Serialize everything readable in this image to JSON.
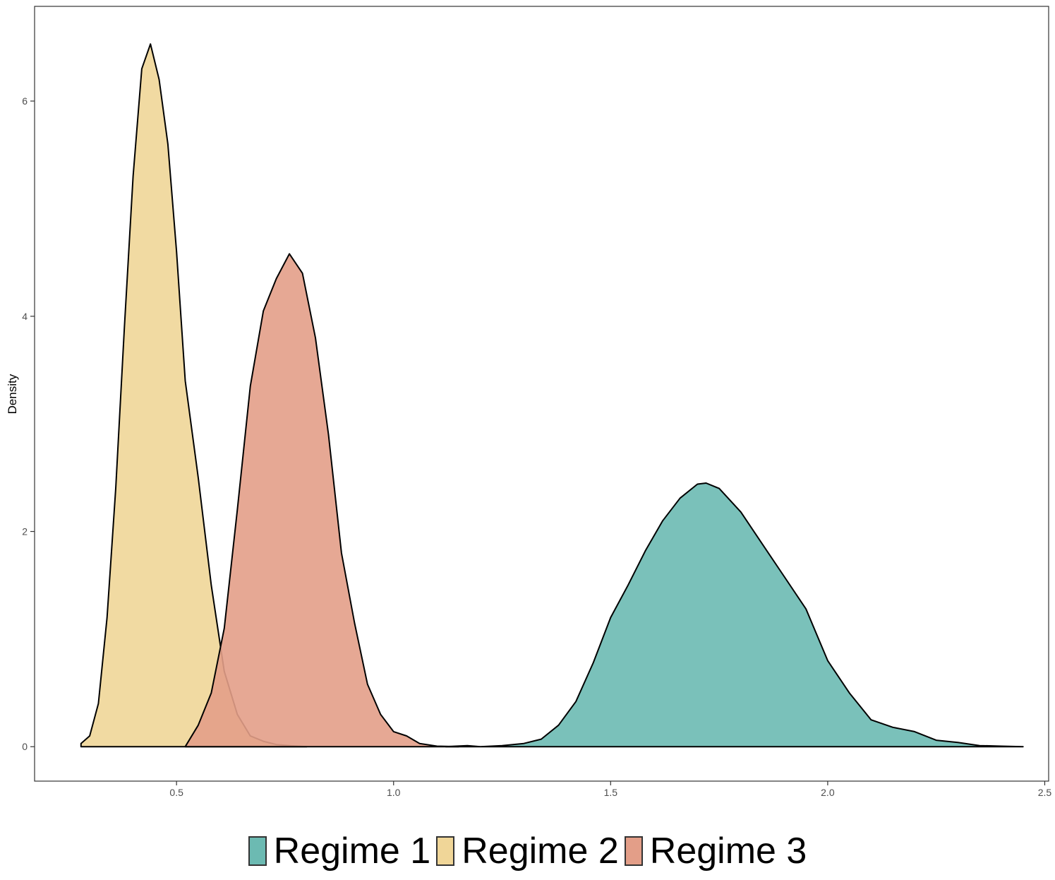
{
  "chart_data": {
    "type": "area",
    "subtype": "density",
    "title": "",
    "xlabel": "",
    "ylabel": "Density",
    "xlim": [
      0.173,
      2.509
    ],
    "ylim": [
      -0.32,
      6.88
    ],
    "x_ticks": [
      0.5,
      1.0,
      1.5,
      2.0,
      2.5
    ],
    "x_tick_labels": [
      "0.5",
      "1.0",
      "1.5",
      "2.0",
      "2.5"
    ],
    "y_ticks": [
      0,
      2,
      4,
      6
    ],
    "y_tick_labels": [
      "0",
      "2",
      "4",
      "6"
    ],
    "grid": false,
    "legend_position": "bottom",
    "series": [
      {
        "name": "Regime 1",
        "color": "#6cbab2",
        "points": [
          [
            1.12,
            0.0
          ],
          [
            1.17,
            0.01
          ],
          [
            1.2,
            0.0
          ],
          [
            1.25,
            0.01
          ],
          [
            1.3,
            0.03
          ],
          [
            1.34,
            0.07
          ],
          [
            1.38,
            0.2
          ],
          [
            1.42,
            0.42
          ],
          [
            1.46,
            0.78
          ],
          [
            1.5,
            1.2
          ],
          [
            1.54,
            1.5
          ],
          [
            1.58,
            1.82
          ],
          [
            1.62,
            2.1
          ],
          [
            1.66,
            2.31
          ],
          [
            1.7,
            2.44
          ],
          [
            1.72,
            2.45
          ],
          [
            1.75,
            2.4
          ],
          [
            1.8,
            2.18
          ],
          [
            1.85,
            1.88
          ],
          [
            1.9,
            1.58
          ],
          [
            1.95,
            1.28
          ],
          [
            2.0,
            0.8
          ],
          [
            2.05,
            0.5
          ],
          [
            2.1,
            0.25
          ],
          [
            2.15,
            0.18
          ],
          [
            2.2,
            0.14
          ],
          [
            2.25,
            0.06
          ],
          [
            2.3,
            0.04
          ],
          [
            2.35,
            0.01
          ],
          [
            2.4,
            0.005
          ],
          [
            2.45,
            0.0
          ]
        ]
      },
      {
        "name": "Regime 2",
        "color": "#f0d698",
        "points": [
          [
            0.28,
            0.03
          ],
          [
            0.3,
            0.1
          ],
          [
            0.32,
            0.4
          ],
          [
            0.34,
            1.2
          ],
          [
            0.36,
            2.4
          ],
          [
            0.38,
            3.9
          ],
          [
            0.4,
            5.3
          ],
          [
            0.42,
            6.3
          ],
          [
            0.44,
            6.53
          ],
          [
            0.46,
            6.2
          ],
          [
            0.48,
            5.6
          ],
          [
            0.5,
            4.6
          ],
          [
            0.52,
            3.4
          ],
          [
            0.55,
            2.5
          ],
          [
            0.58,
            1.5
          ],
          [
            0.61,
            0.7
          ],
          [
            0.64,
            0.3
          ],
          [
            0.67,
            0.1
          ],
          [
            0.7,
            0.05
          ],
          [
            0.73,
            0.02
          ],
          [
            0.76,
            0.01
          ],
          [
            0.8,
            0.0
          ]
        ]
      },
      {
        "name": "Regime 3",
        "color": "#e39e88",
        "points": [
          [
            0.52,
            0.0
          ],
          [
            0.55,
            0.2
          ],
          [
            0.58,
            0.5
          ],
          [
            0.61,
            1.1
          ],
          [
            0.64,
            2.2
          ],
          [
            0.67,
            3.35
          ],
          [
            0.7,
            4.05
          ],
          [
            0.73,
            4.35
          ],
          [
            0.76,
            4.58
          ],
          [
            0.79,
            4.4
          ],
          [
            0.82,
            3.8
          ],
          [
            0.85,
            2.9
          ],
          [
            0.88,
            1.8
          ],
          [
            0.91,
            1.15
          ],
          [
            0.94,
            0.58
          ],
          [
            0.97,
            0.3
          ],
          [
            1.0,
            0.14
          ],
          [
            1.03,
            0.1
          ],
          [
            1.06,
            0.03
          ],
          [
            1.1,
            0.005
          ],
          [
            1.15,
            0.0
          ]
        ]
      }
    ]
  }
}
